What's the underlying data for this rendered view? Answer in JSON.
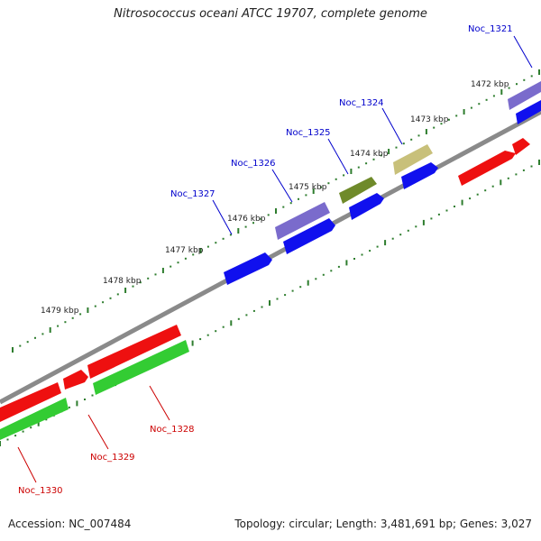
{
  "title": "Nitrosococcus oceani ATCC 19707, complete genome",
  "footer": {
    "accession": "Accession: NC_007484",
    "summary": "Topology: circular; Length: 3,481,691 bp; Genes: 3,027"
  },
  "colors": {
    "backbone": "#8a8a8a",
    "tick": "#2e7d2e",
    "label_blue": "#0000cc",
    "label_red": "#cc0000",
    "cds_blue": "#1010ee",
    "cds_red": "#ee1010",
    "cds_green": "#33cc33",
    "feature_purple": "#7a6bcc",
    "feature_olive": "#6f8a2a",
    "feature_khaki": "#c8c07a"
  },
  "kbp_labels": [
    "1472 kbp",
    "1473 kbp",
    "1474 kbp",
    "1475 kbp",
    "1476 kbp",
    "1477 kbp",
    "1478 kbp",
    "1479 kbp"
  ],
  "gene_labels": [
    "Noc_1321",
    "Noc_1324",
    "Noc_1325",
    "Noc_1326",
    "Noc_1327",
    "Noc_1328",
    "Noc_1329",
    "Noc_1330"
  ]
}
